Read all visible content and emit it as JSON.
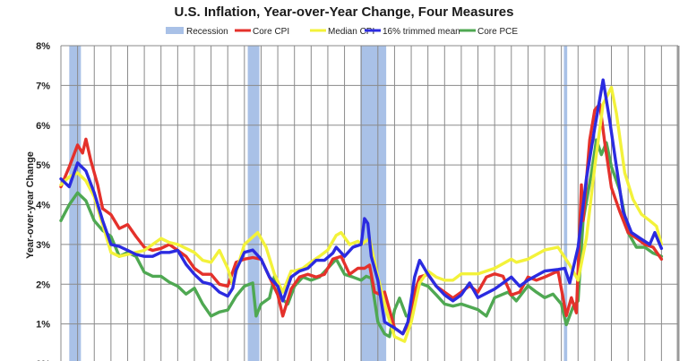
{
  "chart_data": {
    "type": "line",
    "title": "U.S. Inflation, Year-over-Year Change, Four Measures",
    "xlabel": "",
    "ylabel": "Year-over-year Change",
    "xlim": [
      1990,
      2027
    ],
    "ylim": [
      0,
      8
    ],
    "y_ticks": [
      "0%",
      "1%",
      "2%",
      "3%",
      "4%",
      "5%",
      "6%",
      "7%",
      "8%"
    ],
    "grid": true,
    "legend_position": "top",
    "recession_label": "Recession",
    "recession_color": "#a9c1e7",
    "recessions": [
      [
        1990.5,
        1991.2
      ],
      [
        2001.2,
        2001.9
      ],
      [
        2007.95,
        2009.5
      ],
      [
        2020.15,
        2020.35
      ]
    ],
    "series": [
      {
        "name": "Core PCE",
        "color": "#4fa852",
        "points": [
          [
            1990,
            3.6
          ],
          [
            1990.5,
            4.0
          ],
          [
            1991,
            4.3
          ],
          [
            1991.5,
            4.1
          ],
          [
            1992,
            3.6
          ],
          [
            1992.5,
            3.35
          ],
          [
            1993,
            3.2
          ],
          [
            1993.5,
            2.7
          ],
          [
            1994,
            2.8
          ],
          [
            1994.5,
            2.7
          ],
          [
            1995,
            2.3
          ],
          [
            1995.5,
            2.2
          ],
          [
            1996,
            2.2
          ],
          [
            1996.5,
            2.05
          ],
          [
            1997,
            1.95
          ],
          [
            1997.5,
            1.75
          ],
          [
            1998,
            1.9
          ],
          [
            1998.5,
            1.5
          ],
          [
            1999,
            1.2
          ],
          [
            1999.5,
            1.3
          ],
          [
            2000,
            1.35
          ],
          [
            2000.5,
            1.7
          ],
          [
            2001,
            1.95
          ],
          [
            2001.5,
            2.03
          ],
          [
            2001.7,
            1.2
          ],
          [
            2002,
            1.5
          ],
          [
            2002.5,
            1.65
          ],
          [
            2002.8,
            2.2
          ],
          [
            2003.2,
            1.65
          ],
          [
            2003.6,
            1.5
          ],
          [
            2004,
            1.95
          ],
          [
            2004.5,
            2.18
          ],
          [
            2005,
            2.1
          ],
          [
            2005.5,
            2.18
          ],
          [
            2006,
            2.4
          ],
          [
            2006.5,
            2.63
          ],
          [
            2007,
            2.25
          ],
          [
            2007.5,
            2.18
          ],
          [
            2008,
            2.1
          ],
          [
            2008.3,
            2.2
          ],
          [
            2008.6,
            2.15
          ],
          [
            2009,
            1.05
          ],
          [
            2009.4,
            0.75
          ],
          [
            2009.7,
            0.68
          ],
          [
            2010,
            1.35
          ],
          [
            2010.3,
            1.65
          ],
          [
            2010.7,
            1.2
          ],
          [
            2011,
            1.2
          ],
          [
            2011.5,
            2.03
          ],
          [
            2012,
            1.95
          ],
          [
            2012.5,
            1.73
          ],
          [
            2013,
            1.5
          ],
          [
            2013.5,
            1.45
          ],
          [
            2014,
            1.5
          ],
          [
            2015,
            1.36
          ],
          [
            2015.5,
            1.2
          ],
          [
            2016,
            1.66
          ],
          [
            2016.8,
            1.8
          ],
          [
            2017.3,
            1.58
          ],
          [
            2018,
            1.96
          ],
          [
            2018.5,
            1.8
          ],
          [
            2019,
            1.66
          ],
          [
            2019.5,
            1.75
          ],
          [
            2020,
            1.5
          ],
          [
            2020.3,
            0.98
          ],
          [
            2020.7,
            1.43
          ],
          [
            2021,
            1.58
          ],
          [
            2021.3,
            3.6
          ],
          [
            2021.8,
            4.8
          ],
          [
            2022.1,
            5.63
          ],
          [
            2022.4,
            5.26
          ],
          [
            2022.7,
            5.56
          ],
          [
            2023,
            4.96
          ],
          [
            2023.5,
            4.36
          ],
          [
            2024,
            3.3
          ],
          [
            2024.5,
            2.93
          ],
          [
            2025,
            2.93
          ],
          [
            2025.5,
            2.78
          ],
          [
            2026,
            2.7
          ]
        ]
      },
      {
        "name": "Core CPI",
        "color": "#e4312b",
        "points": [
          [
            1990,
            4.45
          ],
          [
            1990.5,
            4.95
          ],
          [
            1991,
            5.5
          ],
          [
            1991.3,
            5.3
          ],
          [
            1991.5,
            5.65
          ],
          [
            1991.8,
            5.1
          ],
          [
            1992.2,
            4.5
          ],
          [
            1992.5,
            3.9
          ],
          [
            1993,
            3.75
          ],
          [
            1993.5,
            3.4
          ],
          [
            1994,
            3.5
          ],
          [
            1994.5,
            3.2
          ],
          [
            1995,
            2.93
          ],
          [
            1995.5,
            2.85
          ],
          [
            1996,
            2.9
          ],
          [
            1996.5,
            3.0
          ],
          [
            1997,
            2.85
          ],
          [
            1997.5,
            2.7
          ],
          [
            1998,
            2.4
          ],
          [
            1998.5,
            2.25
          ],
          [
            1999,
            2.25
          ],
          [
            1999.5,
            2.0
          ],
          [
            2000,
            1.95
          ],
          [
            2000.5,
            2.55
          ],
          [
            2001,
            2.63
          ],
          [
            2001.5,
            2.67
          ],
          [
            2002,
            2.63
          ],
          [
            2002.5,
            2.18
          ],
          [
            2003,
            1.73
          ],
          [
            2003.3,
            1.2
          ],
          [
            2003.8,
            1.88
          ],
          [
            2004.3,
            2.18
          ],
          [
            2004.8,
            2.25
          ],
          [
            2005.3,
            2.18
          ],
          [
            2005.8,
            2.25
          ],
          [
            2006.3,
            2.63
          ],
          [
            2006.8,
            2.7
          ],
          [
            2007.3,
            2.25
          ],
          [
            2007.8,
            2.4
          ],
          [
            2008.2,
            2.4
          ],
          [
            2008.5,
            2.48
          ],
          [
            2008.8,
            1.8
          ],
          [
            2009.2,
            1.73
          ],
          [
            2009.4,
            1.8
          ],
          [
            2010,
            0.9
          ],
          [
            2010.5,
            0.75
          ],
          [
            2010.8,
            0.98
          ],
          [
            2011.2,
            1.8
          ],
          [
            2011.5,
            2.18
          ],
          [
            2012,
            2.25
          ],
          [
            2012.5,
            1.95
          ],
          [
            2013,
            1.8
          ],
          [
            2013.5,
            1.65
          ],
          [
            2014,
            1.8
          ],
          [
            2014.5,
            1.96
          ],
          [
            2015,
            1.8
          ],
          [
            2015.5,
            2.18
          ],
          [
            2016,
            2.26
          ],
          [
            2016.5,
            2.2
          ],
          [
            2017,
            1.73
          ],
          [
            2017.5,
            1.8
          ],
          [
            2018,
            2.18
          ],
          [
            2018.5,
            2.1
          ],
          [
            2019,
            2.18
          ],
          [
            2019.8,
            2.33
          ],
          [
            2020.3,
            1.21
          ],
          [
            2020.6,
            1.66
          ],
          [
            2020.9,
            1.28
          ],
          [
            2021.2,
            4.5
          ],
          [
            2021.3,
            3.6
          ],
          [
            2021.7,
            5.63
          ],
          [
            2022,
            6.38
          ],
          [
            2022.3,
            6.53
          ],
          [
            2022.6,
            5.56
          ],
          [
            2023,
            4.43
          ],
          [
            2023.5,
            3.83
          ],
          [
            2024,
            3.3
          ],
          [
            2024.5,
            3.16
          ],
          [
            2025,
            3.0
          ],
          [
            2025.5,
            2.93
          ],
          [
            2026,
            2.63
          ]
        ]
      },
      {
        "name": "Median CPI",
        "color": "#f3f23a",
        "points": [
          [
            1990,
            4.5
          ],
          [
            1990.5,
            4.7
          ],
          [
            1991,
            4.8
          ],
          [
            1991.5,
            4.6
          ],
          [
            1992,
            4.2
          ],
          [
            1992.5,
            3.5
          ],
          [
            1993,
            2.8
          ],
          [
            1993.5,
            2.7
          ],
          [
            1994,
            2.75
          ],
          [
            1994.5,
            2.8
          ],
          [
            1995,
            2.85
          ],
          [
            1995.5,
            3.0
          ],
          [
            1996,
            3.15
          ],
          [
            1996.5,
            3.05
          ],
          [
            1997,
            3.0
          ],
          [
            1997.5,
            2.9
          ],
          [
            1998,
            2.8
          ],
          [
            1998.5,
            2.6
          ],
          [
            1999,
            2.55
          ],
          [
            1999.5,
            2.85
          ],
          [
            2000,
            2.4
          ],
          [
            2000.3,
            2.0
          ],
          [
            2000.5,
            2.3
          ],
          [
            2001,
            3.0
          ],
          [
            2001.8,
            3.3
          ],
          [
            2002.3,
            2.93
          ],
          [
            2002.8,
            2.25
          ],
          [
            2003.3,
            1.8
          ],
          [
            2003.8,
            2.33
          ],
          [
            2004,
            2.33
          ],
          [
            2004.5,
            2.4
          ],
          [
            2005,
            2.56
          ],
          [
            2005.5,
            2.7
          ],
          [
            2006,
            2.86
          ],
          [
            2006.5,
            3.23
          ],
          [
            2006.8,
            3.3
          ],
          [
            2007.3,
            3.0
          ],
          [
            2007.8,
            3.08
          ],
          [
            2008,
            3.0
          ],
          [
            2008.5,
            3.15
          ],
          [
            2009,
            2.18
          ],
          [
            2009.5,
            1.35
          ],
          [
            2010,
            0.68
          ],
          [
            2010.6,
            0.56
          ],
          [
            2011,
            1.05
          ],
          [
            2011.5,
            2.03
          ],
          [
            2012,
            2.33
          ],
          [
            2012.5,
            2.18
          ],
          [
            2013,
            2.1
          ],
          [
            2013.5,
            2.1
          ],
          [
            2014,
            2.26
          ],
          [
            2015,
            2.26
          ],
          [
            2016,
            2.4
          ],
          [
            2017,
            2.63
          ],
          [
            2017.3,
            2.55
          ],
          [
            2018,
            2.63
          ],
          [
            2019,
            2.86
          ],
          [
            2019.8,
            2.93
          ],
          [
            2020.5,
            2.48
          ],
          [
            2021,
            2.1
          ],
          [
            2021.5,
            3.16
          ],
          [
            2022,
            4.96
          ],
          [
            2022.5,
            6.53
          ],
          [
            2023,
            6.95
          ],
          [
            2023.3,
            6.3
          ],
          [
            2023.8,
            4.8
          ],
          [
            2024.3,
            4.13
          ],
          [
            2024.8,
            3.76
          ],
          [
            2025.3,
            3.6
          ],
          [
            2025.7,
            3.46
          ],
          [
            2026,
            3.0
          ]
        ]
      },
      {
        "name": "16% trimmed mean",
        "color": "#2b2be0",
        "points": [
          [
            1990,
            4.65
          ],
          [
            1990.5,
            4.45
          ],
          [
            1991,
            5.05
          ],
          [
            1991.5,
            4.85
          ],
          [
            1992,
            4.3
          ],
          [
            1992.5,
            3.6
          ],
          [
            1993,
            3.0
          ],
          [
            1993.5,
            2.95
          ],
          [
            1994,
            2.85
          ],
          [
            1994.5,
            2.75
          ],
          [
            1995,
            2.7
          ],
          [
            1995.5,
            2.7
          ],
          [
            1996,
            2.8
          ],
          [
            1996.5,
            2.8
          ],
          [
            1997,
            2.85
          ],
          [
            1997.5,
            2.5
          ],
          [
            1998,
            2.25
          ],
          [
            1998.5,
            2.05
          ],
          [
            1999,
            2.0
          ],
          [
            1999.5,
            1.8
          ],
          [
            2000,
            1.7
          ],
          [
            2000.3,
            1.9
          ],
          [
            2000.5,
            2.35
          ],
          [
            2001,
            2.8
          ],
          [
            2001.5,
            2.86
          ],
          [
            2002,
            2.63
          ],
          [
            2002.5,
            2.18
          ],
          [
            2003,
            1.95
          ],
          [
            2003.3,
            1.58
          ],
          [
            2003.8,
            2.18
          ],
          [
            2004.3,
            2.33
          ],
          [
            2004.8,
            2.4
          ],
          [
            2005.3,
            2.6
          ],
          [
            2005.8,
            2.6
          ],
          [
            2006.3,
            2.78
          ],
          [
            2006.5,
            2.93
          ],
          [
            2007,
            2.7
          ],
          [
            2007.5,
            2.93
          ],
          [
            2008,
            3.0
          ],
          [
            2008.2,
            3.65
          ],
          [
            2008.4,
            3.53
          ],
          [
            2008.6,
            2.7
          ],
          [
            2009,
            2.1
          ],
          [
            2009.4,
            1.05
          ],
          [
            2010,
            0.9
          ],
          [
            2010.5,
            0.75
          ],
          [
            2010.8,
            1.05
          ],
          [
            2011.2,
            2.18
          ],
          [
            2011.5,
            2.6
          ],
          [
            2012,
            2.25
          ],
          [
            2012.5,
            1.95
          ],
          [
            2013,
            1.73
          ],
          [
            2013.5,
            1.58
          ],
          [
            2014,
            1.73
          ],
          [
            2014.5,
            2.03
          ],
          [
            2015,
            1.66
          ],
          [
            2016,
            1.88
          ],
          [
            2017,
            2.18
          ],
          [
            2017.5,
            1.95
          ],
          [
            2018,
            2.1
          ],
          [
            2019,
            2.33
          ],
          [
            2019.8,
            2.37
          ],
          [
            2020.2,
            2.4
          ],
          [
            2020.5,
            2.03
          ],
          [
            2021,
            2.93
          ],
          [
            2021.5,
            4.66
          ],
          [
            2022,
            5.93
          ],
          [
            2022.5,
            7.14
          ],
          [
            2022.9,
            6.1
          ],
          [
            2023.3,
            4.96
          ],
          [
            2023.7,
            3.83
          ],
          [
            2024.2,
            3.3
          ],
          [
            2024.7,
            3.16
          ],
          [
            2025.3,
            3.0
          ],
          [
            2025.6,
            3.3
          ],
          [
            2026,
            2.9
          ]
        ]
      }
    ],
    "legend_order": [
      "Core CPI",
      "Median CPI",
      "16% trimmed mean",
      "Core PCE"
    ]
  }
}
